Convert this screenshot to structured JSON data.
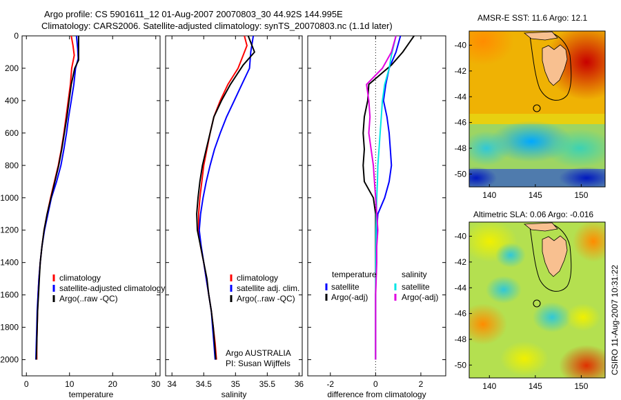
{
  "title_line1": "Argo profile: CS 5901611_12 01-Aug-2007 20070803_30 44.92S 144.995E",
  "title_line2": "Climatology: CARS2006. Satellite-adjusted climatology: synTS_20070803.nc (1.1d later)",
  "side_label": "CSIRO 11-Aug-2007 10:31:22",
  "colors": {
    "red": "#ff0000",
    "blue": "#0000ff",
    "black": "#000000",
    "cyan": "#00e5e5",
    "magenta": "#e000e0"
  },
  "chart_data": [
    {
      "type": "line",
      "xlabel": "temperature",
      "ylabel": "",
      "xlim": [
        -1,
        31
      ],
      "ylim": [
        2100,
        0
      ],
      "xticks": [
        0,
        10,
        20,
        30
      ],
      "yticks": [
        0,
        200,
        400,
        600,
        800,
        1000,
        1200,
        1400,
        1600,
        1800,
        2000
      ],
      "legend": [
        "climatology",
        "satellite-adjusted climatology",
        "Argo(..raw -QC)"
      ],
      "legend_placement": "lower-right",
      "series": [
        {
          "name": "climatology",
          "color": "red",
          "points": [
            [
              10.4,
              0
            ],
            [
              10.8,
              60
            ],
            [
              11.1,
              120
            ],
            [
              10.5,
              200
            ],
            [
              10.2,
              300
            ],
            [
              9.7,
              400
            ],
            [
              9.2,
              500
            ],
            [
              8.7,
              600
            ],
            [
              8.1,
              700
            ],
            [
              7.4,
              800
            ],
            [
              6.5,
              900
            ],
            [
              5.6,
              1000
            ],
            [
              4.8,
              1100
            ],
            [
              4.1,
              1200
            ],
            [
              3.6,
              1300
            ],
            [
              3.2,
              1400
            ],
            [
              2.9,
              1500
            ],
            [
              2.7,
              1600
            ],
            [
              2.6,
              1700
            ],
            [
              2.5,
              1800
            ],
            [
              2.4,
              1900
            ],
            [
              2.4,
              2000
            ]
          ]
        },
        {
          "name": "satellite-adjusted climatology",
          "color": "blue",
          "points": [
            [
              11.6,
              0
            ],
            [
              11.9,
              80
            ],
            [
              12.0,
              140
            ],
            [
              11.4,
              200
            ],
            [
              11.0,
              300
            ],
            [
              10.4,
              400
            ],
            [
              9.8,
              500
            ],
            [
              9.3,
              600
            ],
            [
              8.7,
              700
            ],
            [
              8.0,
              800
            ],
            [
              7.0,
              900
            ],
            [
              5.8,
              1000
            ],
            [
              5.0,
              1100
            ],
            [
              4.2,
              1200
            ],
            [
              3.6,
              1300
            ],
            [
              3.2,
              1400
            ],
            [
              2.9,
              1500
            ],
            [
              2.7,
              1600
            ],
            [
              2.5,
              1700
            ],
            [
              2.4,
              1800
            ],
            [
              2.3,
              1900
            ],
            [
              2.2,
              2000
            ]
          ]
        },
        {
          "name": "Argo(..raw -QC)",
          "color": "black",
          "points": [
            [
              12.1,
              0
            ],
            [
              12.1,
              60
            ],
            [
              12.1,
              150
            ],
            [
              11.2,
              200
            ],
            [
              10.4,
              300
            ],
            [
              9.9,
              400
            ],
            [
              9.4,
              500
            ],
            [
              8.8,
              600
            ],
            [
              8.2,
              700
            ],
            [
              7.5,
              800
            ],
            [
              6.6,
              900
            ],
            [
              5.7,
              1000
            ],
            [
              4.8,
              1100
            ],
            [
              4.1,
              1200
            ],
            [
              3.6,
              1300
            ],
            [
              3.2,
              1400
            ],
            [
              3.0,
              1500
            ],
            [
              2.8,
              1600
            ],
            [
              2.6,
              1700
            ],
            [
              2.5,
              1800
            ],
            [
              2.4,
              1900
            ],
            [
              2.3,
              2000
            ]
          ]
        }
      ]
    },
    {
      "type": "line",
      "xlabel": "salinity",
      "ylabel": "",
      "xlim": [
        33.9,
        36.05
      ],
      "ylim": [
        2100,
        0
      ],
      "xticks": [
        34,
        34.5,
        35,
        35.5,
        36
      ],
      "yticks": [
        0,
        200,
        400,
        600,
        800,
        1000,
        1200,
        1400,
        1600,
        1800,
        2000
      ],
      "legend": [
        "climatology",
        "satellite adj. clim.",
        "Argo(..raw -QC)"
      ],
      "legend_placement": "lower-right",
      "annotation": [
        "Argo AUSTRALIA",
        "PI: Susan Wijffels"
      ],
      "series": [
        {
          "name": "climatology",
          "color": "red",
          "points": [
            [
              35.14,
              0
            ],
            [
              35.18,
              60
            ],
            [
              35.12,
              120
            ],
            [
              35.04,
              200
            ],
            [
              34.88,
              300
            ],
            [
              34.76,
              400
            ],
            [
              34.66,
              500
            ],
            [
              34.6,
              600
            ],
            [
              34.55,
              700
            ],
            [
              34.5,
              800
            ],
            [
              34.47,
              900
            ],
            [
              34.44,
              1000
            ],
            [
              34.42,
              1100
            ],
            [
              34.42,
              1200
            ],
            [
              34.45,
              1300
            ],
            [
              34.5,
              1400
            ],
            [
              34.54,
              1500
            ],
            [
              34.58,
              1600
            ],
            [
              34.62,
              1700
            ],
            [
              34.65,
              1800
            ],
            [
              34.68,
              1900
            ],
            [
              34.7,
              2000
            ]
          ]
        },
        {
          "name": "satellite adj. clim.",
          "color": "blue",
          "points": [
            [
              35.28,
              0
            ],
            [
              35.24,
              100
            ],
            [
              35.22,
              200
            ],
            [
              35.1,
              300
            ],
            [
              34.98,
              400
            ],
            [
              34.86,
              500
            ],
            [
              34.76,
              600
            ],
            [
              34.67,
              700
            ],
            [
              34.6,
              800
            ],
            [
              34.54,
              900
            ],
            [
              34.49,
              1000
            ],
            [
              34.45,
              1100
            ],
            [
              34.43,
              1200
            ],
            [
              34.46,
              1300
            ],
            [
              34.5,
              1400
            ],
            [
              34.54,
              1500
            ],
            [
              34.58,
              1600
            ],
            [
              34.62,
              1700
            ],
            [
              34.64,
              1800
            ],
            [
              34.66,
              1900
            ],
            [
              34.68,
              2000
            ]
          ]
        },
        {
          "name": "Argo(..raw -QC)",
          "color": "black",
          "points": [
            [
              35.2,
              0
            ],
            [
              35.3,
              100
            ],
            [
              35.12,
              180
            ],
            [
              34.92,
              300
            ],
            [
              34.78,
              400
            ],
            [
              34.66,
              500
            ],
            [
              34.6,
              600
            ],
            [
              34.54,
              700
            ],
            [
              34.48,
              800
            ],
            [
              34.44,
              900
            ],
            [
              34.41,
              1000
            ],
            [
              34.39,
              1100
            ],
            [
              34.4,
              1200
            ],
            [
              34.45,
              1300
            ],
            [
              34.5,
              1400
            ],
            [
              34.55,
              1500
            ],
            [
              34.58,
              1600
            ],
            [
              34.62,
              1700
            ],
            [
              34.65,
              1800
            ],
            [
              34.67,
              1900
            ],
            [
              34.69,
              2000
            ]
          ]
        }
      ]
    },
    {
      "type": "line",
      "xlabel": "difference from climatology",
      "ylabel": "",
      "xlim": [
        -3,
        3.1
      ],
      "ylim": [
        2100,
        0
      ],
      "xticks": [
        -2,
        0,
        2
      ],
      "yticks": [
        0,
        200,
        400,
        600,
        800,
        1000,
        1200,
        1400,
        1600,
        1800,
        2000
      ],
      "legend_headers": [
        "temperature",
        "salinity"
      ],
      "legend": [
        "satellite",
        "Argo(-adj)",
        "satellite",
        "Argo(-adj)"
      ],
      "legend_placement": "lower-right",
      "series": [
        {
          "name": "satellite",
          "group": "temperature",
          "color": "blue",
          "points": [
            [
              1.1,
              0
            ],
            [
              0.9,
              100
            ],
            [
              0.6,
              200
            ],
            [
              0.45,
              300
            ],
            [
              0.35,
              400
            ],
            [
              0.5,
              500
            ],
            [
              0.6,
              600
            ],
            [
              0.65,
              700
            ],
            [
              0.7,
              800
            ],
            [
              0.6,
              900
            ],
            [
              0.4,
              1000
            ],
            [
              0.1,
              1100
            ],
            [
              0.05,
              1200
            ],
            [
              0.02,
              1400
            ],
            [
              0,
              1600
            ],
            [
              0,
              1800
            ],
            [
              0,
              2000
            ]
          ]
        },
        {
          "name": "Argo(-adj)",
          "group": "temperature",
          "color": "black",
          "points": [
            [
              1.7,
              0
            ],
            [
              1.5,
              40
            ],
            [
              1.2,
              100
            ],
            [
              0.7,
              180
            ],
            [
              -0.3,
              300
            ],
            [
              -0.35,
              400
            ],
            [
              -0.5,
              500
            ],
            [
              -0.55,
              600
            ],
            [
              -0.5,
              700
            ],
            [
              -0.55,
              800
            ],
            [
              -0.5,
              900
            ],
            [
              -0.1,
              1000
            ],
            [
              0,
              1100
            ],
            [
              0,
              1200
            ],
            [
              0,
              1400
            ],
            [
              0,
              1600
            ],
            [
              0,
              1800
            ],
            [
              0,
              2000
            ]
          ]
        },
        {
          "name": "satellite",
          "group": "salinity",
          "color": "cyan",
          "points": [
            [
              0.9,
              0
            ],
            [
              0.8,
              60
            ],
            [
              0.7,
              120
            ],
            [
              0.6,
              200
            ],
            [
              0.4,
              300
            ],
            [
              0.3,
              400
            ],
            [
              0.25,
              500
            ],
            [
              0.2,
              600
            ],
            [
              0.15,
              700
            ],
            [
              0.1,
              800
            ],
            [
              0.08,
              900
            ],
            [
              0.05,
              1000
            ],
            [
              0.02,
              1200
            ],
            [
              0.01,
              1400
            ],
            [
              0,
              1600
            ],
            [
              0,
              1800
            ],
            [
              0,
              2000
            ]
          ]
        },
        {
          "name": "Argo(-adj)",
          "group": "salinity",
          "color": "magenta",
          "points": [
            [
              0.9,
              0
            ],
            [
              0.7,
              100
            ],
            [
              0.3,
              200
            ],
            [
              -0.4,
              300
            ],
            [
              -0.3,
              400
            ],
            [
              -0.25,
              500
            ],
            [
              -0.3,
              600
            ],
            [
              -0.2,
              700
            ],
            [
              -0.1,
              800
            ],
            [
              -0.05,
              900
            ],
            [
              0,
              1000
            ],
            [
              0.05,
              1100
            ],
            [
              0.1,
              1200
            ],
            [
              0.05,
              1300
            ],
            [
              0.05,
              1400
            ],
            [
              0,
              1600
            ],
            [
              0,
              1800
            ],
            [
              0,
              2000
            ]
          ]
        }
      ]
    }
  ],
  "maps": [
    {
      "title": "AMSR-E SST: 11.6 Argo: 12.1",
      "xlim": [
        137.8,
        152.6
      ],
      "ylim": [
        -51,
        -38.9
      ],
      "xticks": [
        140,
        145,
        150
      ],
      "yticks": [
        -40,
        -42,
        -44,
        -46,
        -48,
        -50
      ],
      "marker": [
        145,
        -44.92
      ]
    },
    {
      "title": "Altimetric SLA: 0.06 Argo: -0.016",
      "xlim": [
        137.8,
        152.6
      ],
      "ylim": [
        -51,
        -38.9
      ],
      "xticks": [
        140,
        145,
        150
      ],
      "yticks": [
        -40,
        -42,
        -44,
        -46,
        -48,
        -50
      ],
      "marker": [
        145,
        -44.92
      ]
    }
  ]
}
